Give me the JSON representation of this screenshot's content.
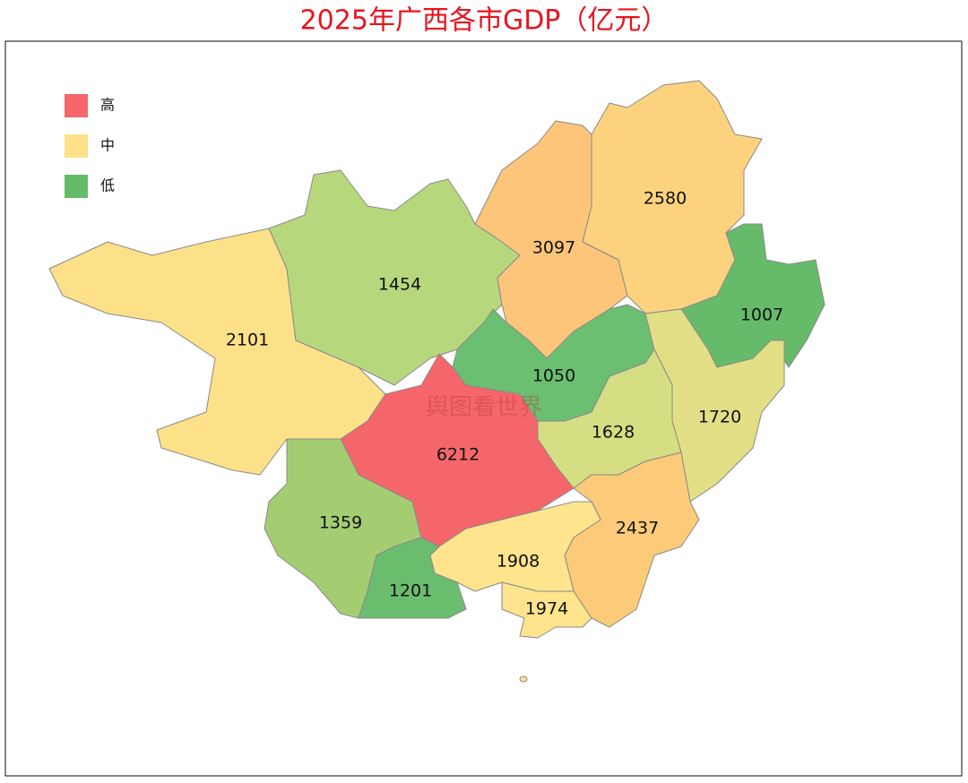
{
  "title": "2025年广西各市GDP（亿元）",
  "watermark": "舆图看世界",
  "legend": [
    {
      "label": "高",
      "color": "#f4666a"
    },
    {
      "label": "中",
      "color": "#fde188"
    },
    {
      "label": "低",
      "color": "#66bb6a"
    }
  ],
  "regions": [
    {
      "value": 2101,
      "color": "#fde188"
    },
    {
      "value": 1454,
      "color": "#b7d77d"
    },
    {
      "value": 3097,
      "color": "#fcc57a"
    },
    {
      "value": 2580,
      "color": "#fdd27f"
    },
    {
      "value": 1007,
      "color": "#66bb6a"
    },
    {
      "value": 1050,
      "color": "#6bbf71"
    },
    {
      "value": 1720,
      "color": "#e2df86"
    },
    {
      "value": 1628,
      "color": "#d6de83"
    },
    {
      "value": 6212,
      "color": "#f4666a"
    },
    {
      "value": 2437,
      "color": "#fbcb79"
    },
    {
      "value": 1359,
      "color": "#a4cd72"
    },
    {
      "value": 1908,
      "color": "#fde48d"
    },
    {
      "value": 1201,
      "color": "#6bbd6e"
    },
    {
      "value": 1974,
      "color": "#fde48d"
    }
  ]
}
